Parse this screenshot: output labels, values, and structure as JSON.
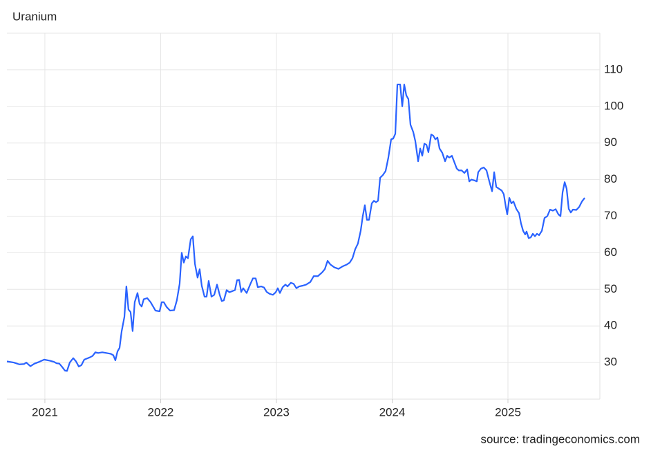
{
  "chart_data": {
    "type": "line",
    "title": "Uranium",
    "source": "source: tradingeconomics.com",
    "color": "#2962ff",
    "grid": true,
    "xlim": [
      2020.672,
      2025.794
    ],
    "xticks": [
      2021,
      2022,
      2023,
      2024,
      2025
    ],
    "ylim": [
      20,
      120
    ],
    "yticks": [
      30,
      40,
      50,
      60,
      70,
      80,
      90,
      100,
      110
    ],
    "x": [
      2020.672,
      2020.731,
      2020.779,
      2020.821,
      2020.839,
      2020.875,
      2020.91,
      2020.952,
      2020.994,
      2021.042,
      2021.078,
      2021.101,
      2021.125,
      2021.149,
      2021.173,
      2021.191,
      2021.215,
      2021.245,
      2021.269,
      2021.293,
      2021.316,
      2021.34,
      2021.388,
      2021.412,
      2021.436,
      2021.46,
      2021.496,
      2021.531,
      2021.567,
      2021.591,
      2021.609,
      2021.627,
      2021.645,
      2021.663,
      2021.687,
      2021.704,
      2021.722,
      2021.74,
      2021.758,
      2021.776,
      2021.8,
      2021.818,
      2021.836,
      2021.854,
      2021.884,
      2021.913,
      2021.937,
      2021.955,
      2021.991,
      2022.009,
      2022.027,
      2022.051,
      2022.081,
      2022.116,
      2022.14,
      2022.164,
      2022.182,
      2022.2,
      2022.218,
      2022.236,
      2022.26,
      2022.278,
      2022.296,
      2022.319,
      2022.337,
      2022.355,
      2022.379,
      2022.397,
      2022.415,
      2022.439,
      2022.463,
      2022.487,
      2022.51,
      2022.528,
      2022.546,
      2022.57,
      2022.594,
      2022.618,
      2022.642,
      2022.66,
      2022.678,
      2022.696,
      2022.713,
      2022.743,
      2022.773,
      2022.797,
      2022.821,
      2022.839,
      2022.869,
      2022.893,
      2022.916,
      2022.94,
      2022.97,
      2022.994,
      2023.012,
      2023.03,
      2023.054,
      2023.078,
      2023.096,
      2023.125,
      2023.149,
      2023.173,
      2023.197,
      2023.227,
      2023.257,
      2023.293,
      2023.322,
      2023.358,
      2023.394,
      2023.418,
      2023.442,
      2023.466,
      2023.501,
      2023.537,
      2023.573,
      2023.609,
      2023.633,
      2023.657,
      2023.681,
      2023.704,
      2023.728,
      2023.746,
      2023.764,
      2023.782,
      2023.8,
      2023.824,
      2023.842,
      2023.86,
      2023.878,
      2023.896,
      2023.919,
      2023.943,
      2023.967,
      2023.991,
      2024.009,
      2024.027,
      2024.045,
      2024.069,
      2024.087,
      2024.104,
      2024.122,
      2024.14,
      2024.158,
      2024.182,
      2024.2,
      2024.224,
      2024.242,
      2024.26,
      2024.278,
      2024.296,
      2024.313,
      2024.337,
      2024.355,
      2024.373,
      2024.391,
      2024.409,
      2024.433,
      2024.457,
      2024.475,
      2024.493,
      2024.516,
      2024.534,
      2024.558,
      2024.576,
      2024.6,
      2024.624,
      2024.648,
      2024.666,
      2024.684,
      2024.707,
      2024.731,
      2024.743,
      2024.767,
      2024.791,
      2024.815,
      2024.839,
      2024.863,
      2024.881,
      2024.899,
      2024.922,
      2024.946,
      2024.964,
      2024.982,
      2024.994,
      2025.012,
      2025.03,
      2025.048,
      2025.072,
      2025.096,
      2025.113,
      2025.131,
      2025.149,
      2025.161,
      2025.179,
      2025.197,
      2025.215,
      2025.233,
      2025.251,
      2025.269,
      2025.293,
      2025.316,
      2025.34,
      2025.364,
      2025.388,
      2025.412,
      2025.436,
      2025.454,
      2025.472,
      2025.49,
      2025.507,
      2025.525,
      2025.543,
      2025.561,
      2025.591,
      2025.615,
      2025.639,
      2025.663
    ],
    "values": [
      30.3,
      30.0,
      29.5,
      29.6,
      30.0,
      29.0,
      29.7,
      30.2,
      30.8,
      30.5,
      30.2,
      29.8,
      29.7,
      28.8,
      27.8,
      27.7,
      30.0,
      31.2,
      30.3,
      28.9,
      29.3,
      30.8,
      31.4,
      31.8,
      32.8,
      32.6,
      32.8,
      32.6,
      32.4,
      32.0,
      30.6,
      33.0,
      34.0,
      38.5,
      42.5,
      50.8,
      44.5,
      43.8,
      38.6,
      46.5,
      49.0,
      46.0,
      45.3,
      47.3,
      47.6,
      46.5,
      45.2,
      44.2,
      44.0,
      46.5,
      46.5,
      45.2,
      44.2,
      44.3,
      47.0,
      51.5,
      60.0,
      57.3,
      59.0,
      58.5,
      63.7,
      64.5,
      57.0,
      53.2,
      55.5,
      51.0,
      48.0,
      48.0,
      52.3,
      48.0,
      48.5,
      51.3,
      48.5,
      46.8,
      47.0,
      49.8,
      49.2,
      49.5,
      49.8,
      52.5,
      52.6,
      49.3,
      50.3,
      49.0,
      51.3,
      53.0,
      53.0,
      50.6,
      50.8,
      50.5,
      49.3,
      48.8,
      48.5,
      49.2,
      50.3,
      49.0,
      50.6,
      51.3,
      50.8,
      51.8,
      51.5,
      50.3,
      50.8,
      51.0,
      51.3,
      52.0,
      53.6,
      53.6,
      54.6,
      55.5,
      57.8,
      56.8,
      56.0,
      55.6,
      56.3,
      56.8,
      57.3,
      58.5,
      61.0,
      62.5,
      66.0,
      70.0,
      73.0,
      69.0,
      69.0,
      73.5,
      74.2,
      73.8,
      74.2,
      80.5,
      81.2,
      82.3,
      86.0,
      91.0,
      91.2,
      92.5,
      106.0,
      106.0,
      100.0,
      106.0,
      103.0,
      102.0,
      95.0,
      93.0,
      90.5,
      85.0,
      88.5,
      86.5,
      89.8,
      89.5,
      87.5,
      92.3,
      92.0,
      91.0,
      91.5,
      88.5,
      87.3,
      85.0,
      86.5,
      86.0,
      86.5,
      85.0,
      83.0,
      82.5,
      82.5,
      81.8,
      82.8,
      79.5,
      80.0,
      79.8,
      79.5,
      82.0,
      83.0,
      83.3,
      82.5,
      79.5,
      76.8,
      82.0,
      78.0,
      77.5,
      77.0,
      76.0,
      72.5,
      70.5,
      75.0,
      73.5,
      74.0,
      72.0,
      70.8,
      68.0,
      66.0,
      65.0,
      65.8,
      64.0,
      64.2,
      65.2,
      64.5,
      65.2,
      64.8,
      66.0,
      69.5,
      70.0,
      71.8,
      71.5,
      71.9,
      70.5,
      70.0,
      76.5,
      79.3,
      77.5,
      72.0,
      71.0,
      71.8,
      71.7,
      72.5,
      74.0,
      75.0
    ]
  }
}
